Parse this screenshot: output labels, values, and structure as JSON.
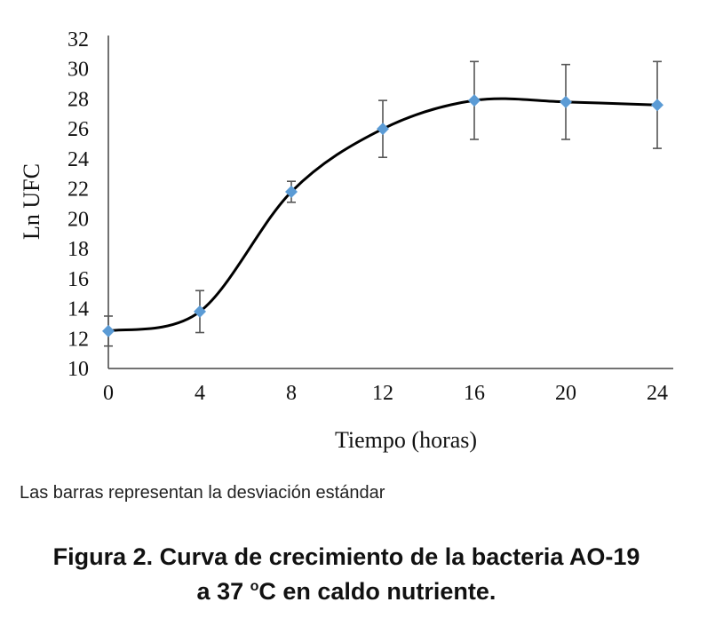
{
  "chart_data": {
    "type": "line",
    "x": [
      0,
      4,
      8,
      12,
      16,
      20,
      24
    ],
    "series": [
      {
        "values": [
          12.5,
          13.8,
          21.8,
          26.0,
          27.9,
          27.8,
          27.6
        ],
        "error": [
          1.0,
          1.4,
          0.7,
          1.9,
          2.6,
          2.5,
          2.9
        ]
      }
    ],
    "ylabel": "Ln UFC",
    "xlabel": "Tiempo (horas)",
    "xlim": [
      0,
      24
    ],
    "ylim": [
      10,
      32
    ],
    "yticks": [
      10,
      12,
      14,
      16,
      18,
      20,
      22,
      24,
      26,
      28,
      30,
      32
    ],
    "xticks": [
      0,
      4,
      8,
      12,
      16,
      20,
      24
    ],
    "grid": false,
    "colors": {
      "line": "#000000",
      "marker": "#5b9bd5",
      "errorbar": "#555555"
    }
  },
  "note": "Las barras representan la desviación estándar",
  "caption": {
    "line1": "Figura 2. Curva de crecimiento de la bacteria AO-19",
    "line2_prefix": "a 37 ",
    "degree": "o",
    "line2_suffix": "C en caldo nutriente."
  }
}
